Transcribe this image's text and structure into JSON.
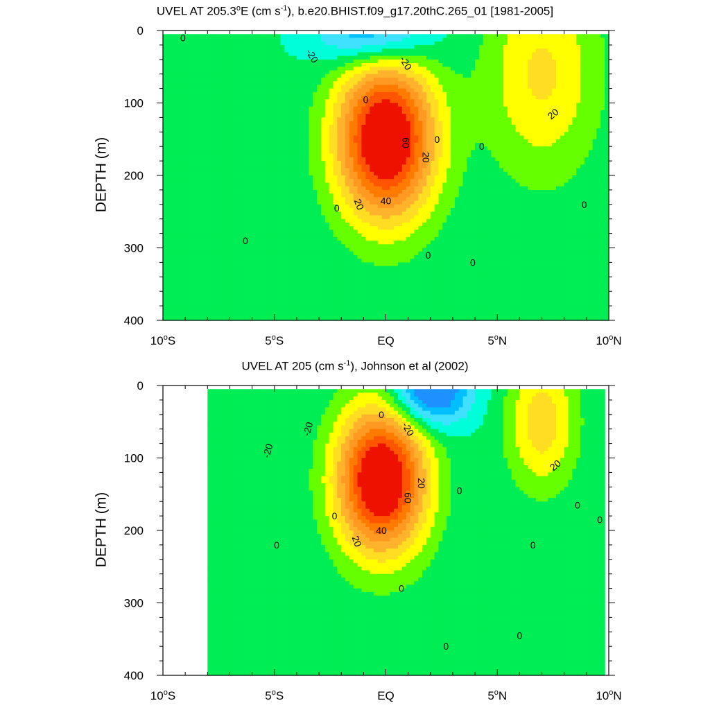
{
  "chart_data": [
    {
      "type": "contour",
      "title": "UVEL AT 205.3°E (cm s-1), b.e20.BHIST.f09_g17.20thC.265_01 [1981-2005]",
      "title_parts": {
        "pre": "UVEL AT 205.3",
        "deg": "o",
        "mid": "E (cm s",
        "sup": "-1",
        "post": "), b.e20.BHIST.f09_g17.20thC.265_01 [1981-2005]"
      },
      "ylabel": "DEPTH (m)",
      "xlim": [
        -10,
        10
      ],
      "ylim": [
        0,
        400
      ],
      "y_inverted": true,
      "x_ticks": [
        {
          "value": -10,
          "num": "10",
          "deg": "o",
          "hemi": "S"
        },
        {
          "value": -5,
          "num": "5",
          "deg": "o",
          "hemi": "S"
        },
        {
          "value": 0,
          "num": "EQ",
          "deg": "",
          "hemi": ""
        },
        {
          "value": 5,
          "num": "5",
          "deg": "o",
          "hemi": "N"
        },
        {
          "value": 10,
          "num": "10",
          "deg": "o",
          "hemi": "N"
        }
      ],
      "y_ticks": [
        "0",
        "100",
        "200",
        "300",
        "400"
      ],
      "contour_interval": 10,
      "data_extent": {
        "lon": [
          -10,
          10
        ],
        "depth": [
          5,
          400
        ]
      },
      "features": [
        {
          "name": "EUC",
          "lon": 0,
          "depth": 150,
          "peak": 100,
          "half_width_lon": 2.2,
          "half_depth": 110
        },
        {
          "name": "NECC",
          "lon": 7,
          "depth": 60,
          "peak": 30,
          "half_width_lon": 2.5,
          "half_depth": 140
        },
        {
          "name": "SEC",
          "lon": -0.5,
          "depth": 5,
          "peak": -40,
          "half_width_lon": 2.5,
          "half_depth": 45
        }
      ],
      "contour_labels": [
        {
          "text": "0",
          "lon": -9.1,
          "depth": 10,
          "rot": 0
        },
        {
          "text": "-20",
          "lon": -3.3,
          "depth": 35,
          "rot": 60
        },
        {
          "text": "-20",
          "lon": 0.9,
          "depth": 45,
          "rot": 60
        },
        {
          "text": "0",
          "lon": -0.9,
          "depth": 95,
          "rot": 0
        },
        {
          "text": "60",
          "lon": 0.9,
          "depth": 155,
          "rot": 90
        },
        {
          "text": "20",
          "lon": 1.8,
          "depth": 175,
          "rot": 90
        },
        {
          "text": "0",
          "lon": 2.3,
          "depth": 150,
          "rot": 0
        },
        {
          "text": "0",
          "lon": 4.3,
          "depth": 160,
          "rot": 0
        },
        {
          "text": "20",
          "lon": 7.5,
          "depth": 115,
          "rot": -40
        },
        {
          "text": "20",
          "lon": -1.2,
          "depth": 240,
          "rot": 70
        },
        {
          "text": "40",
          "lon": 0,
          "depth": 235,
          "rot": 0
        },
        {
          "text": "0",
          "lon": -2.2,
          "depth": 245,
          "rot": 0
        },
        {
          "text": "0",
          "lon": -6.3,
          "depth": 290,
          "rot": 0
        },
        {
          "text": "0",
          "lon": 1.9,
          "depth": 310,
          "rot": 0
        },
        {
          "text": "0",
          "lon": 3.9,
          "depth": 320,
          "rot": 0
        },
        {
          "text": "0",
          "lon": 8.9,
          "depth": 240,
          "rot": 0
        }
      ]
    },
    {
      "type": "contour",
      "title": "UVEL AT 205 (cm s-1), Johnson et al (2002)",
      "title_parts": {
        "pre": "UVEL AT 205",
        "deg": "",
        "mid": " (cm s",
        "sup": "-1",
        "post": "), Johnson et al (2002)"
      },
      "ylabel": "DEPTH (m)",
      "xlim": [
        -10,
        10
      ],
      "ylim": [
        0,
        400
      ],
      "y_inverted": true,
      "x_ticks": [
        {
          "value": -10,
          "num": "10",
          "deg": "o",
          "hemi": "S"
        },
        {
          "value": -5,
          "num": "5",
          "deg": "o",
          "hemi": "S"
        },
        {
          "value": 0,
          "num": "EQ",
          "deg": "",
          "hemi": ""
        },
        {
          "value": 5,
          "num": "5",
          "deg": "o",
          "hemi": "N"
        },
        {
          "value": 10,
          "num": "10",
          "deg": "o",
          "hemi": "N"
        }
      ],
      "y_ticks": [
        "0",
        "100",
        "200",
        "300",
        "400"
      ],
      "contour_interval": 10,
      "data_extent": {
        "lon": [
          -8,
          9.8
        ],
        "depth": [
          5,
          400
        ]
      },
      "features": [
        {
          "name": "EUC",
          "lon": -0.2,
          "depth": 130,
          "peak": 100,
          "half_width_lon": 2.0,
          "half_depth": 100
        },
        {
          "name": "NECC",
          "lon": 7.0,
          "depth": 50,
          "peak": 35,
          "half_width_lon": 1.5,
          "half_depth": 90
        },
        {
          "name": "SEC",
          "lon": 2.0,
          "depth": 5,
          "peak": -55,
          "half_width_lon": 1.7,
          "half_depth": 50
        }
      ],
      "contour_labels": [
        {
          "text": "-20",
          "lon": -5.3,
          "depth": 90,
          "rot": -75
        },
        {
          "text": "-20",
          "lon": -3.5,
          "depth": 60,
          "rot": -75
        },
        {
          "text": "0",
          "lon": -0.2,
          "depth": 40,
          "rot": 0
        },
        {
          "text": "-20",
          "lon": 1.0,
          "depth": 60,
          "rot": 60
        },
        {
          "text": "20",
          "lon": 1.6,
          "depth": 135,
          "rot": 90
        },
        {
          "text": "60",
          "lon": 1.0,
          "depth": 155,
          "rot": 90
        },
        {
          "text": "0",
          "lon": 3.3,
          "depth": 145,
          "rot": 0
        },
        {
          "text": "20",
          "lon": 7.6,
          "depth": 110,
          "rot": -40
        },
        {
          "text": "0",
          "lon": -2.3,
          "depth": 180,
          "rot": 0
        },
        {
          "text": "0",
          "lon": 8.6,
          "depth": 165,
          "rot": 0
        },
        {
          "text": "0",
          "lon": 9.6,
          "depth": 185,
          "rot": 0
        },
        {
          "text": "20",
          "lon": -1.3,
          "depth": 215,
          "rot": 70
        },
        {
          "text": "40",
          "lon": -0.2,
          "depth": 200,
          "rot": 0
        },
        {
          "text": "0",
          "lon": -4.9,
          "depth": 220,
          "rot": 0
        },
        {
          "text": "0",
          "lon": 6.6,
          "depth": 220,
          "rot": 0
        },
        {
          "text": "0",
          "lon": 0.7,
          "depth": 280,
          "rot": 0
        },
        {
          "text": "0",
          "lon": 2.7,
          "depth": 360,
          "rot": 0
        },
        {
          "text": "0",
          "lon": 6.0,
          "depth": 345,
          "rot": 0
        }
      ]
    }
  ],
  "color_levels": [
    {
      "min": -999,
      "max": -30,
      "color": "#1e90ff"
    },
    {
      "min": -30,
      "max": -20,
      "color": "#00bfff"
    },
    {
      "min": -20,
      "max": -10,
      "color": "#40e0ff"
    },
    {
      "min": -10,
      "max": 0,
      "color": "#00ffd8"
    },
    {
      "min": 0,
      "max": 10,
      "color": "#00ee55"
    },
    {
      "min": 10,
      "max": 20,
      "color": "#66ff00"
    },
    {
      "min": 20,
      "max": 30,
      "color": "#ffff00"
    },
    {
      "min": 30,
      "max": 40,
      "color": "#ffdd22"
    },
    {
      "min": 40,
      "max": 50,
      "color": "#ffb22c"
    },
    {
      "min": 50,
      "max": 60,
      "color": "#ff9922"
    },
    {
      "min": 60,
      "max": 70,
      "color": "#ff7a00"
    },
    {
      "min": 70,
      "max": 80,
      "color": "#ff5500"
    },
    {
      "min": 80,
      "max": 999,
      "color": "#ee1100"
    }
  ]
}
